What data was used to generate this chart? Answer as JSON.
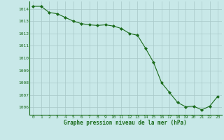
{
  "x": [
    0,
    1,
    2,
    3,
    4,
    5,
    6,
    7,
    8,
    9,
    10,
    11,
    12,
    13,
    14,
    15,
    16,
    17,
    18,
    19,
    20,
    21,
    22,
    23
  ],
  "y": [
    1014.2,
    1014.2,
    1013.7,
    1013.6,
    1013.3,
    1013.0,
    1012.8,
    1012.7,
    1012.65,
    1012.7,
    1012.6,
    1012.4,
    1012.0,
    1011.85,
    1010.8,
    1009.65,
    1008.0,
    1007.2,
    1006.4,
    1006.05,
    1006.1,
    1005.8,
    1006.1,
    1006.9
  ],
  "line_color": "#1a6b1a",
  "marker_color": "#1a6b1a",
  "bg_color": "#c8e8e8",
  "grid_color": "#a8c8c8",
  "xlabel": "Graphe pression niveau de la mer (hPa)",
  "xlabel_color": "#1a6b1a",
  "tick_color": "#1a6b1a",
  "ylim": [
    1005.4,
    1014.6
  ],
  "xlim": [
    -0.5,
    23.5
  ],
  "yticks": [
    1006,
    1007,
    1008,
    1009,
    1010,
    1011,
    1012,
    1013,
    1014
  ],
  "xticks": [
    0,
    1,
    2,
    3,
    4,
    5,
    6,
    7,
    8,
    9,
    10,
    11,
    12,
    13,
    14,
    15,
    16,
    17,
    18,
    19,
    20,
    21,
    22,
    23
  ],
  "xtick_labels": [
    "0",
    "1",
    "2",
    "3",
    "4",
    "5",
    "6",
    "7",
    "8",
    "9",
    "10",
    "11",
    "12",
    "13",
    "14",
    "15",
    "16",
    "17",
    "18",
    "19",
    "20",
    "21",
    "22",
    "23"
  ]
}
